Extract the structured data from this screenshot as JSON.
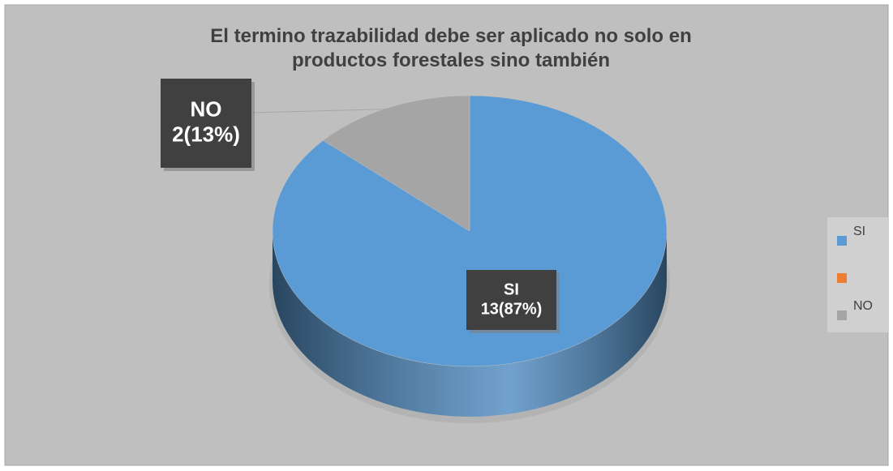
{
  "chart_data": {
    "type": "pie",
    "title": "El termino trazabilidad debe ser aplicado no solo en productos forestales sino también",
    "categories": [
      "SI",
      null,
      "NO"
    ],
    "values": [
      13,
      0,
      2
    ],
    "value_labels": [
      "13(87%)",
      null,
      "2(13%)"
    ],
    "colors": [
      "#5b9bd5",
      "#ed7d31",
      "#a5a5a5"
    ],
    "legend": "right"
  }
}
